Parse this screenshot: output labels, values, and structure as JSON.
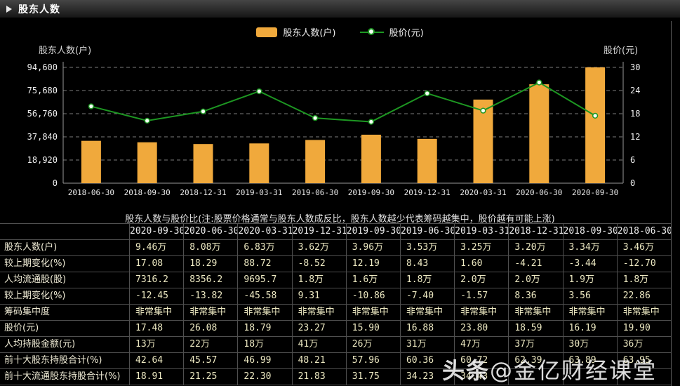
{
  "header": {
    "title": "股东人数"
  },
  "legend": [
    {
      "label": "股东人数(户)",
      "color": "#F0A93C",
      "marker": "bar"
    },
    {
      "label": "股价(元)",
      "color": "#1D9722",
      "marker": "line-dot"
    }
  ],
  "chart_data": {
    "type": "bar",
    "categories": [
      "2018-06-30",
      "2018-09-30",
      "2018-12-31",
      "2019-03-31",
      "2019-06-30",
      "2019-09-30",
      "2019-12-31",
      "2020-03-31",
      "2020-06-30",
      "2020-09-30"
    ],
    "series": [
      {
        "name": "股东人数(户)",
        "type": "bar",
        "axis": "left",
        "color": "#F0A93C",
        "values": [
          34600,
          33400,
          32000,
          32500,
          35300,
          39600,
          36200,
          68300,
          80800,
          94600
        ]
      },
      {
        "name": "股价(元)",
        "type": "line",
        "axis": "right",
        "color": "#1D9722",
        "values": [
          19.9,
          16.19,
          18.59,
          23.8,
          16.88,
          15.9,
          23.27,
          18.79,
          26.08,
          17.48
        ]
      }
    ],
    "left_axis": {
      "title": "股东人数(户)",
      "max": 94600,
      "min": 0,
      "ticks": [
        "94,600",
        "75,680",
        "56,760",
        "37,840",
        "18,920",
        "0"
      ]
    },
    "right_axis": {
      "title": "股价(元)",
      "max": 30,
      "min": 0,
      "ticks": [
        "30",
        "24",
        "18",
        "12",
        "6",
        "0"
      ]
    },
    "grid": "dashed-horizontal",
    "legend_position": "top-center"
  },
  "subtitle": "股东人数与股价比(注:股票价格通常与股东人数成反比，股东人数越少代表筹码越集中，股价越有可能上涨)",
  "table": {
    "columns": [
      "2020-09-30",
      "2020-06-30",
      "2020-03-31",
      "2019-12-31",
      "2019-09-30",
      "2019-06-30",
      "2019-03-31",
      "2018-12-31",
      "2018-09-30",
      "2018-06-30"
    ],
    "rows": [
      {
        "label": "股东人数(户)",
        "values": [
          "9.46万",
          "8.08万",
          "6.83万",
          "3.62万",
          "3.96万",
          "3.53万",
          "3.25万",
          "3.20万",
          "3.34万",
          "3.46万"
        ]
      },
      {
        "label": "较上期变化(%)",
        "values": [
          "17.08",
          "18.29",
          "88.72",
          "-8.52",
          "12.19",
          "8.43",
          "1.60",
          "-4.21",
          "-3.44",
          "-12.70"
        ]
      },
      {
        "label": "人均流通股(股)",
        "values": [
          "7316.2",
          "8356.2",
          "9695.7",
          "1.8万",
          "1.6万",
          "1.8万",
          "2.0万",
          "2.0万",
          "1.9万",
          "1.8万"
        ]
      },
      {
        "label": "较上期变化(%)",
        "values": [
          "-12.45",
          "-13.82",
          "-45.58",
          "9.31",
          "-10.86",
          "-7.40",
          "-1.57",
          "8.36",
          "3.56",
          "22.86"
        ]
      },
      {
        "label": "筹码集中度",
        "values": [
          "非常集中",
          "非常集中",
          "非常集中",
          "非常集中",
          "非常集中",
          "非常集中",
          "非常集中",
          "非常集中",
          "非常集中",
          "非常集中"
        ]
      },
      {
        "label": "股价(元)",
        "values": [
          "17.48",
          "26.08",
          "18.79",
          "23.27",
          "15.90",
          "16.88",
          "23.80",
          "18.59",
          "16.19",
          "19.90"
        ]
      },
      {
        "label": "人均持股金额(元)",
        "values": [
          "13万",
          "22万",
          "18万",
          "41万",
          "26万",
          "31万",
          "47万",
          "37万",
          "30万",
          "36万"
        ]
      },
      {
        "label": "前十大股东持股合计(%)",
        "values": [
          "42.64",
          "45.57",
          "46.99",
          "48.21",
          "57.96",
          "60.36",
          "60.72",
          "62.39",
          "63.89",
          "63.95"
        ]
      },
      {
        "label": "前十大流通股东持股合计(%)",
        "values": [
          "18.91",
          "21.25",
          "22.30",
          "21.83",
          "31.75",
          "34.23",
          "34.43",
          "",
          "",
          ""
        ]
      }
    ]
  },
  "watermark": {
    "prefix": "头条",
    "suffix": "@金亿财经课堂"
  }
}
